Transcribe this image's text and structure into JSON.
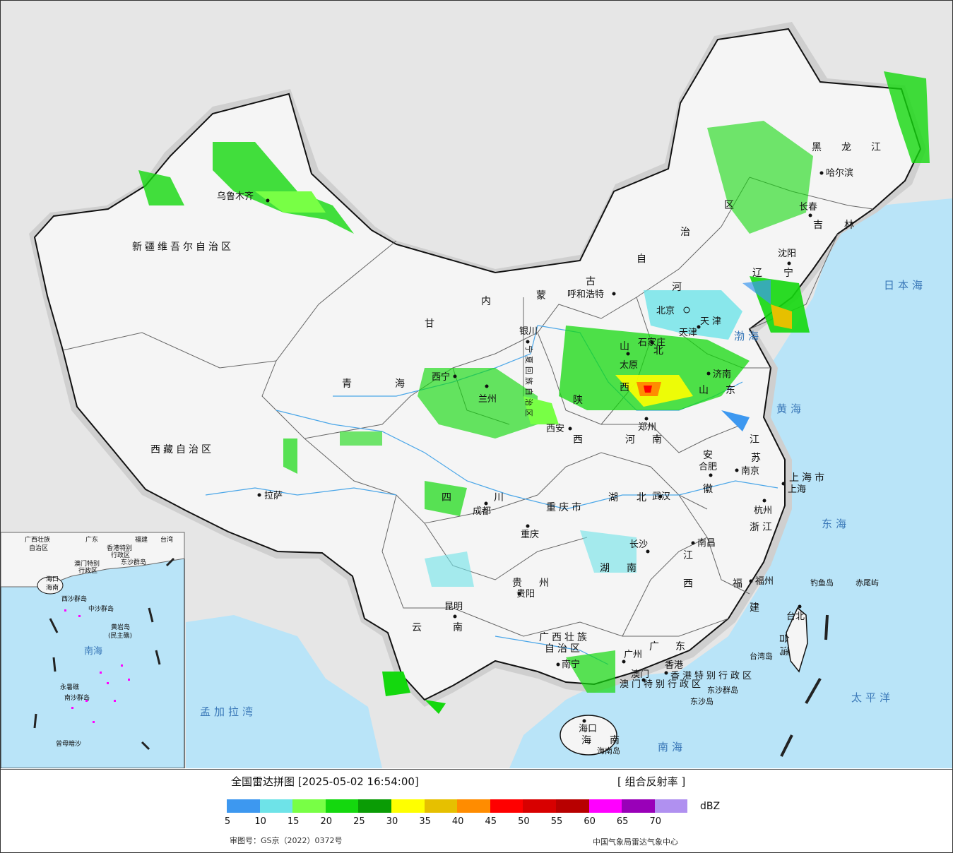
{
  "legend": {
    "title": "全国雷达拼图 [2025-05-02 16:54:00]",
    "product": "[ 组合反射率 ]",
    "unit": "dBZ",
    "colors": [
      "#3d98f0",
      "#6ee3e8",
      "#78ff45",
      "#14d80e",
      "#0a9c05",
      "#ffff00",
      "#e6c000",
      "#ff8c00",
      "#ff0000",
      "#d80000",
      "#b80000",
      "#ff00ff",
      "#9900b8",
      "#b090f0"
    ],
    "ticks": [
      "5",
      "10",
      "15",
      "20",
      "25",
      "30",
      "35",
      "40",
      "45",
      "50",
      "55",
      "60",
      "65",
      "70"
    ],
    "approval": "审图号：GS京（2022）0372号",
    "credit": "中国气象局雷达气象中心"
  },
  "provinces": {
    "xinjiang": "新疆维吾尔自治区",
    "xizang": "西藏自治区",
    "qinghai_1": "青",
    "qinghai_2": "海",
    "gansu": "甘",
    "sichuan_1": "四",
    "sichuan_2": "川",
    "yunnan_1": "云",
    "yunnan_2": "南",
    "guizhou_1": "贵",
    "guizhou_2": "州",
    "guangxi_1": "广西壮族",
    "guangxi_2": "自治区",
    "guangdong_1": "广",
    "guangdong_2": "东",
    "hainan_1": "海",
    "hainan_2": "南",
    "hunan_1": "湖",
    "hunan_2": "南",
    "hubei_1": "湖",
    "hubei_2": "北",
    "jiangxi_1": "江",
    "jiangxi_2": "西",
    "fujian_1": "福",
    "fujian_2": "建",
    "zhejiang": "浙江",
    "anhui_1": "安",
    "anhui_2": "徽",
    "jiangsu_1": "江",
    "jiangsu_2": "苏",
    "shandong_1": "山",
    "shandong_2": "东",
    "henan_1": "河",
    "henan_2": "南",
    "shanxi_1": "山",
    "shanxi_2": "西",
    "shaanxi_1": "陕",
    "shaanxi_2": "西",
    "hebei_1": "河",
    "hebei_2": "北",
    "neimeng_1": "内",
    "neimeng_2": "蒙",
    "neimeng_3": "古",
    "neimeng_4": "自",
    "neimeng_5": "治",
    "neimeng_6": "区",
    "liaoning_1": "辽",
    "liaoning_2": "宁",
    "jilin_1": "吉",
    "jilin_2": "林",
    "heilongjiang_1": "黑",
    "heilongjiang_2": "龙",
    "heilongjiang_3": "江",
    "ningxia": "宁夏回族自治区",
    "chongqing": "重庆市",
    "tianjin": "天津",
    "shanghai": "上海市",
    "taiwan": "台湾",
    "hk": "香港特别行政区",
    "macau": "澳门特别行政区"
  },
  "cities": {
    "urumqi": "乌鲁木齐",
    "lhasa": "拉萨",
    "xining": "西宁",
    "lanzhou": "兰州",
    "yinchuan": "银川",
    "hohhot": "呼和浩特",
    "beijing": "北京",
    "tianjin_city": "天津",
    "shijiazhuang": "石家庄",
    "taiyuan": "太原",
    "jinan": "济南",
    "xian": "西安",
    "zhengzhou": "郑州",
    "hefei": "合肥",
    "nanjing": "南京",
    "shanghai_city": "上海",
    "hangzhou": "杭州",
    "wuhan": "武汉",
    "chengdu": "成都",
    "chongqing_city": "重庆",
    "changsha": "长沙",
    "nanchang": "南昌",
    "fuzhou": "福州",
    "taipei": "台北",
    "guiyang": "贵阳",
    "kunming": "昆明",
    "nanning": "南宁",
    "guangzhou": "广州",
    "hongkong": "香港",
    "macao": "澳门",
    "haikou": "海口",
    "shenyang": "沈阳",
    "changchun": "长春",
    "harbin": "哈尔滨"
  },
  "seas": {
    "japan_sea": "日本海",
    "bohai": "渤海",
    "yellow_sea": "黄海",
    "east_sea": "东海",
    "pacific": "太平洋",
    "south_sea": "南海",
    "bengal": "孟加拉湾"
  },
  "islands": {
    "diaoyu": "钓鱼岛",
    "chiwei": "赤尾屿",
    "taiwan_island": "台湾岛",
    "dongsha": "东沙群岛",
    "dongsha_island": "东沙岛",
    "hainan_island": "海南岛"
  },
  "inset": {
    "guangxi": "广西壮族",
    "zizhiqu": "自治区",
    "guangdong": "广东",
    "fujian": "福建",
    "taiwan": "台湾",
    "hk": "香港特别",
    "xingzhengqu": "行政区",
    "macau": "澳门特别",
    "xingzhengqu2": "行政区",
    "dongsha": "东沙群岛",
    "haikou": "海口",
    "hainan": "海南",
    "xisha": "西沙群岛",
    "zhongsha": "中沙群岛",
    "huangyan": "黄岩岛",
    "minzhu": "(民主礁)",
    "south_sea": "南海",
    "yongshu": "永暑礁",
    "nansha": "南沙群岛",
    "zengmu": "曾母暗沙"
  }
}
